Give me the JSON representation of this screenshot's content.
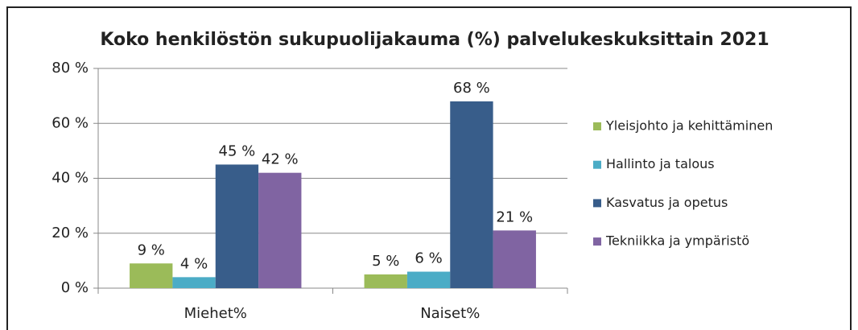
{
  "chart_data": {
    "type": "bar",
    "title": "Koko henkilöstön sukupuolijakauma (%) palvelukeskuksittain 2021",
    "categories": [
      "Miehet%",
      "Naiset%"
    ],
    "series": [
      {
        "name": "Yleisjohto ja kehittäminen",
        "color": "#9bbb59",
        "values": [
          9,
          5
        ],
        "value_labels": [
          "9 %",
          "5 %"
        ]
      },
      {
        "name": "Hallinto ja talous",
        "color": "#4bacc6",
        "values": [
          4,
          6
        ],
        "value_labels": [
          "4 %",
          "6 %"
        ]
      },
      {
        "name": "Kasvatus ja opetus",
        "color": "#385d8a",
        "values": [
          45,
          68
        ],
        "value_labels": [
          "45 %",
          "68 %"
        ]
      },
      {
        "name": "Tekniikka ja ympäristö",
        "color": "#8064a2",
        "values": [
          42,
          21
        ],
        "value_labels": [
          "42 %",
          "21 %"
        ]
      }
    ],
    "ylim": [
      0,
      80
    ],
    "yticks": [
      {
        "value": 0,
        "label": "0 %"
      },
      {
        "value": 20,
        "label": "20 %"
      },
      {
        "value": 40,
        "label": "40 %"
      },
      {
        "value": 60,
        "label": "60 %"
      },
      {
        "value": 80,
        "label": "80 %"
      }
    ],
    "grid": true,
    "legend": "right"
  }
}
